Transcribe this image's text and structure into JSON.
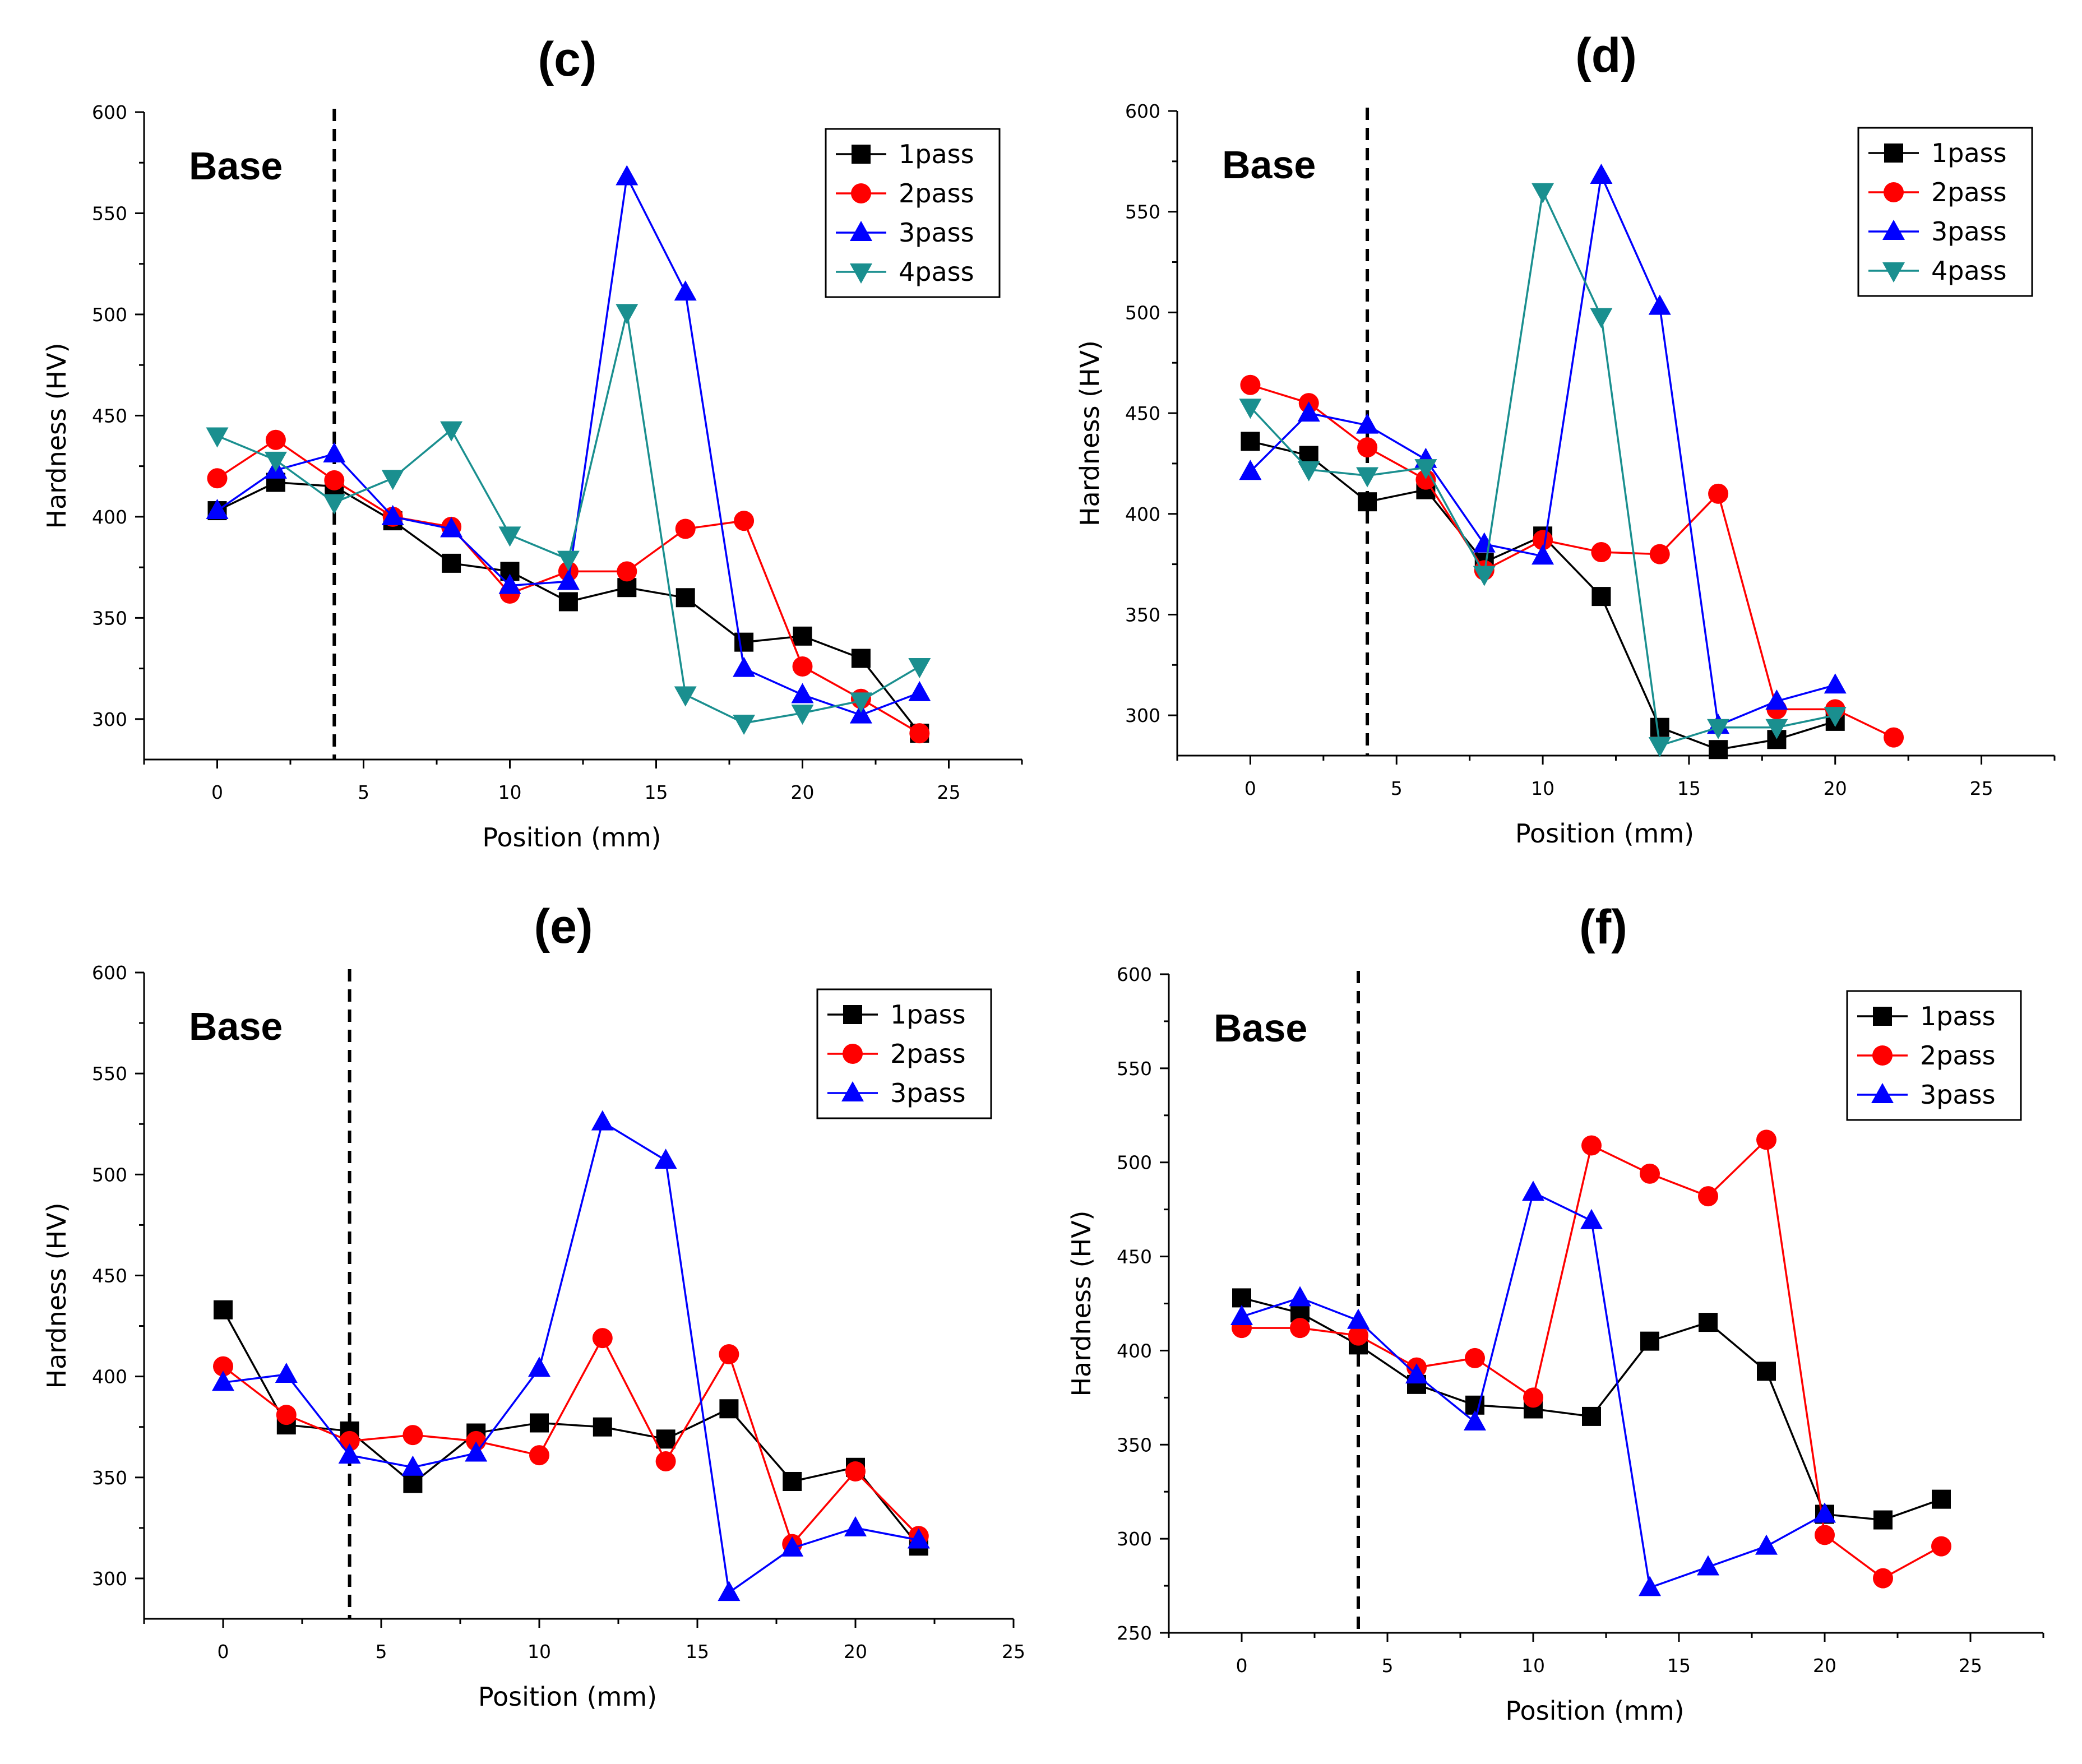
{
  "colors": {
    "1pass": "#000000",
    "2pass": "#ff0000",
    "3pass": "#0000ff",
    "4pass": "#1a8f8f"
  },
  "chart_data": [
    {
      "type": "line",
      "title": "(c)",
      "xlabel": "Position (mm)",
      "ylabel": "Hardness (HV)",
      "xlim": [
        -2.5,
        27.5
      ],
      "ylim": [
        280,
        600
      ],
      "xticks": [
        0,
        5,
        10,
        15,
        20,
        25
      ],
      "yticks": [
        300,
        350,
        400,
        450,
        500,
        550,
        600
      ],
      "annotation": "Base",
      "dashed_line_x": 4,
      "legend_position": "top-right",
      "x": [
        0,
        2,
        4,
        6,
        8,
        10,
        12,
        14,
        16,
        18,
        20,
        22,
        24
      ],
      "series": [
        {
          "name": "1pass",
          "marker": "square",
          "values": [
            403,
            417,
            415,
            398,
            377,
            373,
            358,
            365,
            360,
            338,
            341,
            330,
            293
          ]
        },
        {
          "name": "2pass",
          "marker": "circle",
          "values": [
            419,
            438,
            418,
            400,
            395,
            362,
            373,
            373,
            394,
            398,
            326,
            310,
            293
          ]
        },
        {
          "name": "3pass",
          "marker": "triangle-up",
          "values": [
            403,
            423,
            431,
            400,
            394,
            366,
            368,
            568,
            511,
            325,
            312,
            302,
            313
          ]
        },
        {
          "name": "4pass",
          "marker": "triangle-down",
          "values": [
            440,
            428,
            407,
            419,
            443,
            391,
            379,
            501,
            312,
            298,
            303,
            309,
            326
          ]
        }
      ]
    },
    {
      "type": "line",
      "title": "(d)",
      "xlabel": "Position (mm)",
      "ylabel": "Hardness (HV)",
      "xlim": [
        -2.5,
        27.5
      ],
      "ylim": [
        280,
        600
      ],
      "xticks": [
        0,
        5,
        10,
        15,
        20,
        25
      ],
      "yticks": [
        300,
        350,
        400,
        450,
        500,
        550,
        600
      ],
      "annotation": "Base",
      "dashed_line_x": 4,
      "legend_position": "top-right",
      "x": [
        0,
        2,
        4,
        6,
        8,
        10,
        12,
        14,
        16,
        18,
        20,
        22
      ],
      "series": [
        {
          "name": "1pass",
          "marker": "square",
          "values": [
            436,
            429,
            406,
            412,
            376,
            389,
            359,
            294,
            283,
            288,
            297,
            null
          ]
        },
        {
          "name": "2pass",
          "marker": "circle",
          "values": [
            464,
            455,
            433,
            417,
            372,
            387,
            381,
            380,
            410,
            303,
            303,
            289
          ]
        },
        {
          "name": "3pass",
          "marker": "triangle-up",
          "values": [
            421,
            450,
            444,
            427,
            385,
            379,
            568,
            503,
            295,
            307,
            315,
            null
          ]
        },
        {
          "name": "4pass",
          "marker": "triangle-down",
          "values": [
            453,
            422,
            419,
            423,
            370,
            560,
            498,
            285,
            294,
            294,
            300,
            null
          ]
        }
      ]
    },
    {
      "type": "line",
      "title": "(e)",
      "xlabel": "Position (mm)",
      "ylabel": "Hardness (HV)",
      "xlim": [
        -2.5,
        25
      ],
      "ylim": [
        280,
        600
      ],
      "xticks": [
        0,
        5,
        10,
        15,
        20,
        25
      ],
      "yticks": [
        300,
        350,
        400,
        450,
        500,
        550,
        600
      ],
      "annotation": "Base",
      "dashed_line_x": 4,
      "legend_position": "top-right",
      "x": [
        0,
        2,
        4,
        6,
        8,
        10,
        12,
        14,
        16,
        18,
        20,
        22
      ],
      "series": [
        {
          "name": "1pass",
          "marker": "square",
          "values": [
            433,
            376,
            373,
            347,
            372,
            377,
            375,
            369,
            384,
            348,
            355,
            316
          ]
        },
        {
          "name": "2pass",
          "marker": "circle",
          "values": [
            405,
            381,
            368,
            371,
            368,
            361,
            419,
            358,
            411,
            317,
            353,
            321
          ]
        },
        {
          "name": "3pass",
          "marker": "triangle-up",
          "values": [
            397,
            401,
            361,
            355,
            362,
            404,
            526,
            507,
            293,
            315,
            325,
            319
          ]
        }
      ]
    },
    {
      "type": "line",
      "title": "(f)",
      "xlabel": "Position (mm)",
      "ylabel": "Hardness (HV)",
      "xlim": [
        -2.5,
        27.5
      ],
      "ylim": [
        250,
        600
      ],
      "xticks": [
        0,
        5,
        10,
        15,
        20,
        25
      ],
      "yticks": [
        250,
        300,
        350,
        400,
        450,
        500,
        550,
        600
      ],
      "annotation": "Base",
      "dashed_line_x": 4,
      "legend_position": "top-right",
      "x": [
        0,
        2,
        4,
        6,
        8,
        10,
        12,
        14,
        16,
        18,
        20,
        22,
        24
      ],
      "series": [
        {
          "name": "1pass",
          "marker": "square",
          "values": [
            428,
            420,
            403,
            382,
            371,
            369,
            365,
            405,
            415,
            389,
            313,
            310,
            321
          ]
        },
        {
          "name": "2pass",
          "marker": "circle",
          "values": [
            412,
            412,
            408,
            391,
            396,
            375,
            509,
            494,
            482,
            512,
            302,
            279,
            296
          ]
        },
        {
          "name": "3pass",
          "marker": "triangle-up",
          "values": [
            418,
            428,
            416,
            387,
            362,
            484,
            469,
            274,
            285,
            296,
            313,
            null,
            null
          ]
        }
      ]
    }
  ]
}
